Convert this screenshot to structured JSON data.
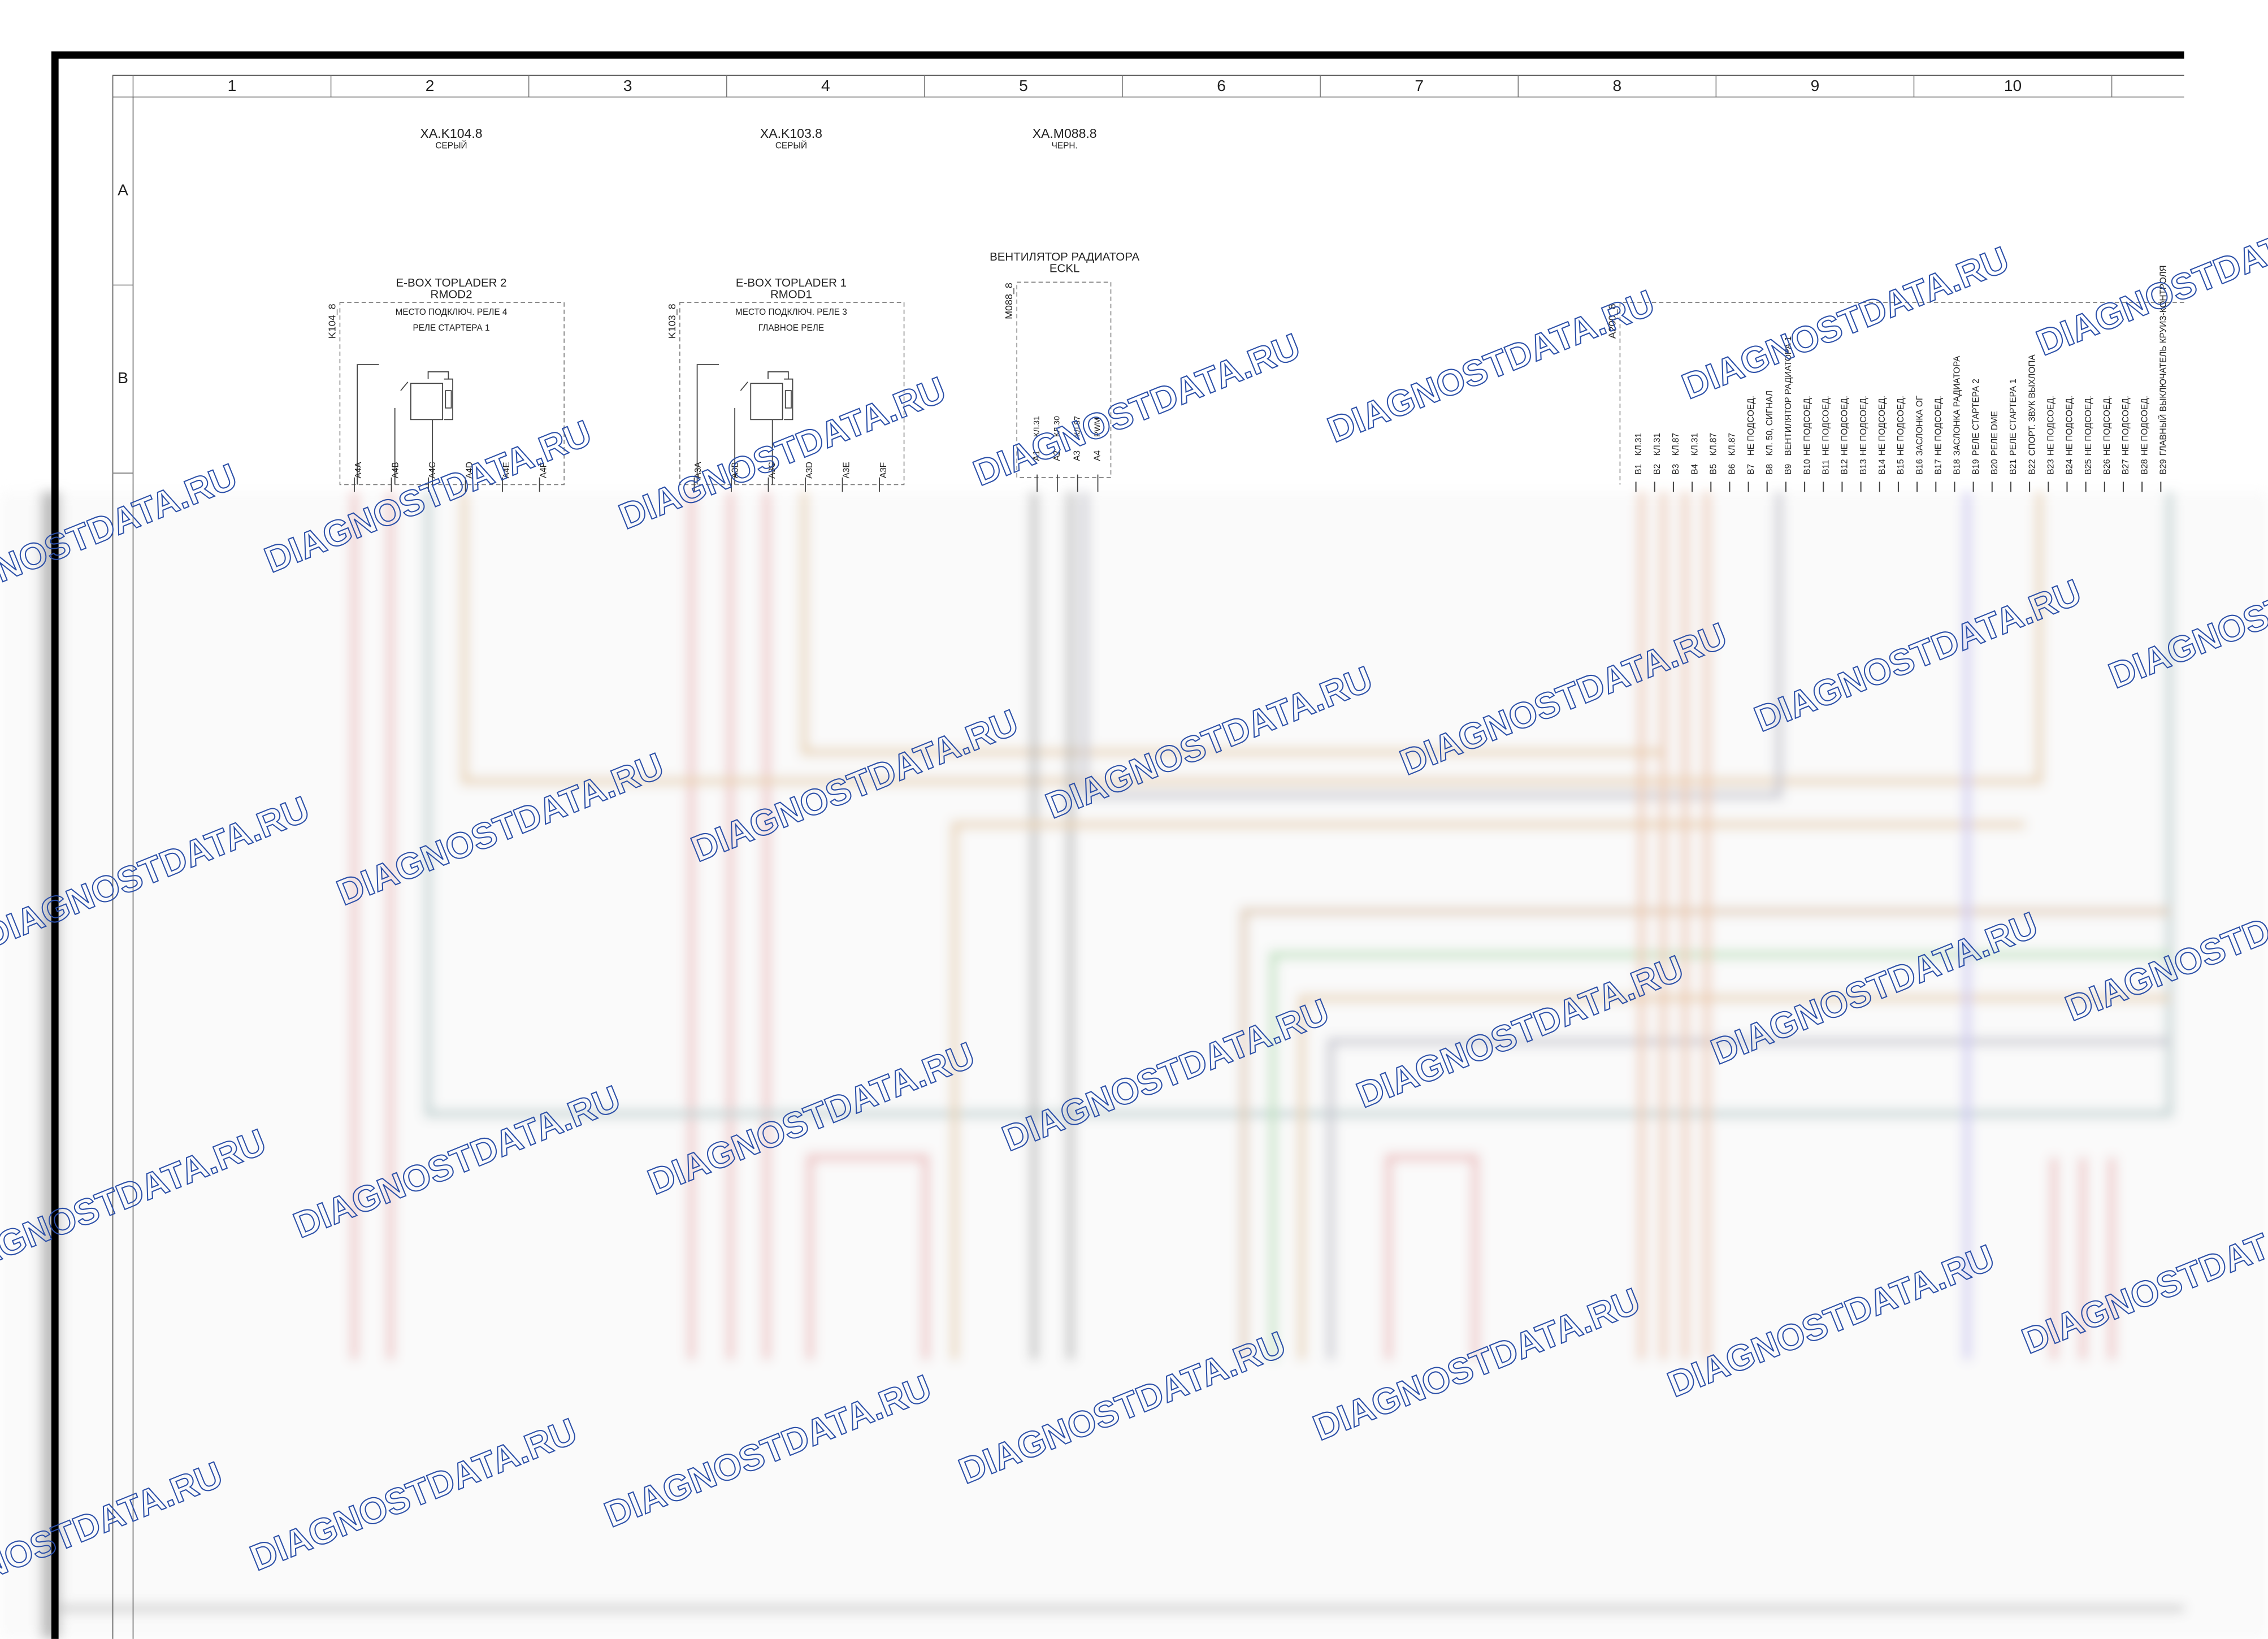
{
  "grid": {
    "columns": [
      "1",
      "2",
      "3",
      "4",
      "5",
      "6",
      "7",
      "8",
      "9",
      "10"
    ],
    "rows": [
      "A",
      "B"
    ]
  },
  "connectors": [
    {
      "id": "XA.K104.8",
      "color": "СЕРЫЙ"
    },
    {
      "id": "XA.K103.8",
      "color": "СЕРЫЙ"
    },
    {
      "id": "XA.M088.8",
      "color": "ЧЕРН."
    }
  ],
  "components": [
    {
      "title": "E-BOX TOPLADER 2",
      "subtitle": "RMOD2",
      "ref": "K104_8",
      "notes": [
        "МЕСТО ПОДКЛЮЧ. РЕЛЕ 4",
        "РЕЛЕ СТАРТЕРА 1"
      ],
      "pins": [
        "A4A",
        "A4B",
        "A4C",
        "A4D",
        "A4E",
        "A4F"
      ]
    },
    {
      "title": "E-BOX TOPLADER 1",
      "subtitle": "RMOD1",
      "ref": "K103_8",
      "notes": [
        "МЕСТО ПОДКЛЮЧ. РЕЛЕ 3",
        "ГЛАВНОЕ РЕЛЕ"
      ],
      "pins": [
        "A3A",
        "A3B",
        "A3C",
        "A3D",
        "A3E",
        "A3F"
      ]
    },
    {
      "title": "ВЕНТИЛЯТОР РАДИАТОРА",
      "subtitle": "ECKL",
      "ref": "M088_8",
      "pins": [
        "A1",
        "A2",
        "A3",
        "A4"
      ],
      "functions": [
        "КЛ.31",
        "КЛ.30",
        "КЛ.87",
        "PWM"
      ]
    },
    {
      "ref": "A200_8",
      "pins": [
        "B1",
        "B2",
        "B3",
        "B4",
        "B5",
        "B6",
        "B7",
        "B8",
        "B9",
        "B10",
        "B11",
        "B12",
        "B13",
        "B14",
        "B15",
        "B16",
        "B17",
        "B18",
        "B19",
        "B20",
        "B21",
        "B22",
        "B23",
        "B24",
        "B25",
        "B26",
        "B27",
        "B28",
        "B29"
      ],
      "functions": [
        "КЛ.31",
        "КЛ.31",
        "КЛ.87",
        "КЛ.31",
        "КЛ.87",
        "КЛ.87",
        "НЕ ПОДСОЕД.",
        "КЛ. 50, СИГНАЛ",
        "ВЕНТИЛЯТОР РАДИАТОРА 1",
        "НЕ ПОДСОЕД.",
        "НЕ ПОДСОЕД.",
        "НЕ ПОДСОЕД.",
        "НЕ ПОДСОЕД.",
        "НЕ ПОДСОЕД.",
        "НЕ ПОДСОЕД.",
        "ЗАСЛОНКА ОГ",
        "НЕ ПОДСОЕД.",
        "ЗАСЛОНКА РАДИАТОРА",
        "РЕЛЕ СТАРТЕРА 2",
        "РЕЛЕ DME",
        "РЕЛЕ СТАРТЕРА 1",
        "СПОРТ. ЗВУК ВЫХЛОПА",
        "НЕ ПОДСОЕД.",
        "НЕ ПОДСОЕД.",
        "НЕ ПОДСОЕД.",
        "НЕ ПОДСОЕД.",
        "НЕ ПОДСОЕД.",
        "НЕ ПОДСОЕД.",
        "ГЛАВНЫЙ ВЫКЛЮЧАТЕЛЬ КРУИЗ-КОНТРОЛЯ"
      ]
    }
  ],
  "watermark": "DIAGNOSTDATA.RU"
}
